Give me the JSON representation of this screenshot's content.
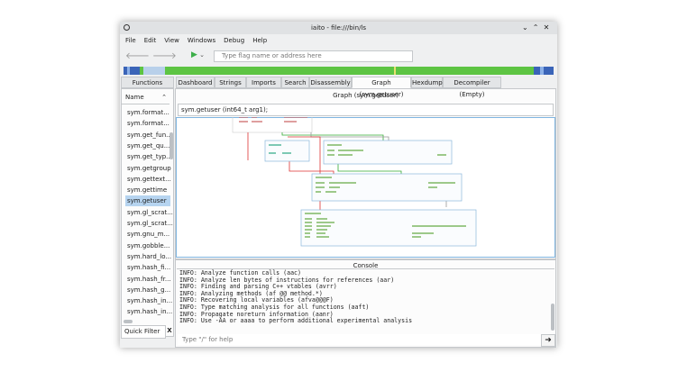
{
  "window": {
    "title": "iaito - file:///bin/ls"
  },
  "menu": [
    "File",
    "Edit",
    "View",
    "Windows",
    "Debug",
    "Help"
  ],
  "toolbar": {
    "address_placeholder": "Type flag name or address here"
  },
  "sidebar": {
    "title": "Functions",
    "column": "Name",
    "functions": [
      "sym.format...",
      "sym.format...",
      "sym.get_fun...",
      "sym.get_qu...",
      "sym.get_typ...",
      "sym.getgroup",
      "sym.gettext...",
      "sym.gettime",
      "sym.getuser",
      "sym.gl_scrat...",
      "sym.gl_scrat...",
      "sym.gnu_m...",
      "sym.gobble...",
      "sym.hard_lo...",
      "sym.hash_fi...",
      "sym.hash_fr...",
      "sym.hash_g...",
      "sym.hash_in...",
      "sym.hash_in..."
    ],
    "selected": 8,
    "filter_label": "Quick Filter",
    "clear": "X"
  },
  "tabs": [
    "Dashboard",
    "Strings",
    "Imports",
    "Search",
    "Disassembly",
    "Graph (sym.getuser)",
    "Hexdump",
    "Decompiler (Empty)"
  ],
  "active_tab": 5,
  "graph": {
    "title": "Graph (sym.getuser)",
    "function": "sym.getuser (int64_t arg1);"
  },
  "console": {
    "title": "Console",
    "lines": [
      "INFO: Analyze function calls (aac)",
      "INFO: Analyze len bytes of instructions for references (aar)",
      "INFO: Finding and parsing C++ vtables (avrr)",
      "INFO: Analyzing methods (af @@ method.*)",
      "INFO: Recovering local variables (afva@@@F)",
      "INFO: Type matching analysis for all functions (aaft)",
      "INFO: Propagate noreturn information (aanr)",
      "INFO: Use -AA or aaaa to perform additional experimental analysis"
    ],
    "input_placeholder": "Type \"/\" for help"
  }
}
